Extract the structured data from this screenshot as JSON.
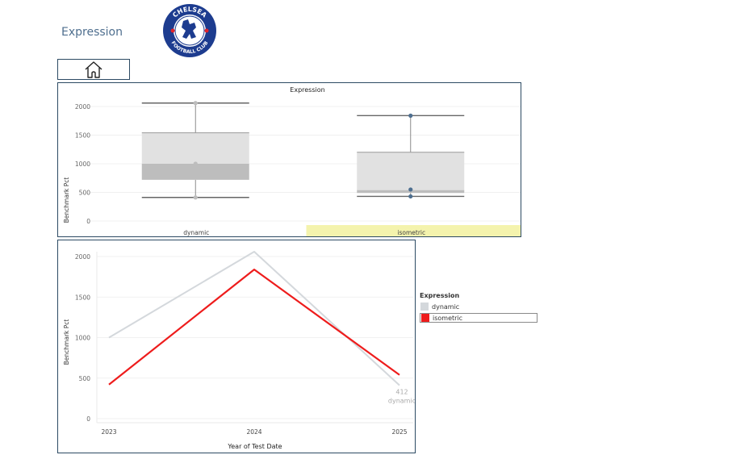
{
  "header": {
    "title": "Expression",
    "logo_text_top": "CHELSEA",
    "logo_text_bottom": "FOOTBALL CLUB"
  },
  "colors": {
    "title": "#4f6f8f",
    "border": "#2c4a63",
    "dynamic": "#d4d8dc",
    "isometric": "#ee1c1c",
    "box_light": "#e1e1e1",
    "box_dark": "#bdbdbd",
    "highlight": "#f4f3ad"
  },
  "home_button": {
    "icon": "home-icon"
  },
  "box_chart": {
    "title": "Expression",
    "ylabel": "Benchmark Pct",
    "yticks": [
      "0",
      "500",
      "1000",
      "1500",
      "2000"
    ]
  },
  "line_chart": {
    "ylabel": "Benchmark Pct",
    "xlabel": "Year of Test Date",
    "yticks": [
      "0",
      "500",
      "1000",
      "1500",
      "2000"
    ],
    "annotation_value": "412",
    "annotation_series": "dynamic"
  },
  "legend": {
    "title": "Expression",
    "items": [
      {
        "label": "dynamic",
        "color": "#d4d8dc",
        "selected": false
      },
      {
        "label": "isometric",
        "color": "#ee1c1c",
        "selected": true
      }
    ]
  },
  "chart_data": [
    {
      "type": "box",
      "title": "Expression",
      "ylabel": "Benchmark Pct",
      "ylim": [
        0,
        2200
      ],
      "categories": [
        "dynamic",
        "isometric"
      ],
      "highlighted_category": "isometric",
      "boxes": [
        {
          "name": "dynamic",
          "min": 412,
          "q1": 720,
          "median": 1000,
          "q3": 1540,
          "max": 2060,
          "points": [
            412,
            1000,
            2060
          ]
        },
        {
          "name": "isometric",
          "min": 430,
          "q1": 490,
          "median": 540,
          "q3": 1200,
          "max": 1840,
          "points": [
            430,
            550,
            1840
          ]
        }
      ]
    },
    {
      "type": "line",
      "xlabel": "Year of Test Date",
      "ylabel": "Benchmark Pct",
      "ylim": [
        0,
        2200
      ],
      "x": [
        "2023",
        "2024",
        "2025"
      ],
      "series": [
        {
          "name": "dynamic",
          "values": [
            1000,
            2060,
            412
          ]
        },
        {
          "name": "isometric",
          "values": [
            420,
            1840,
            540
          ]
        }
      ]
    }
  ]
}
